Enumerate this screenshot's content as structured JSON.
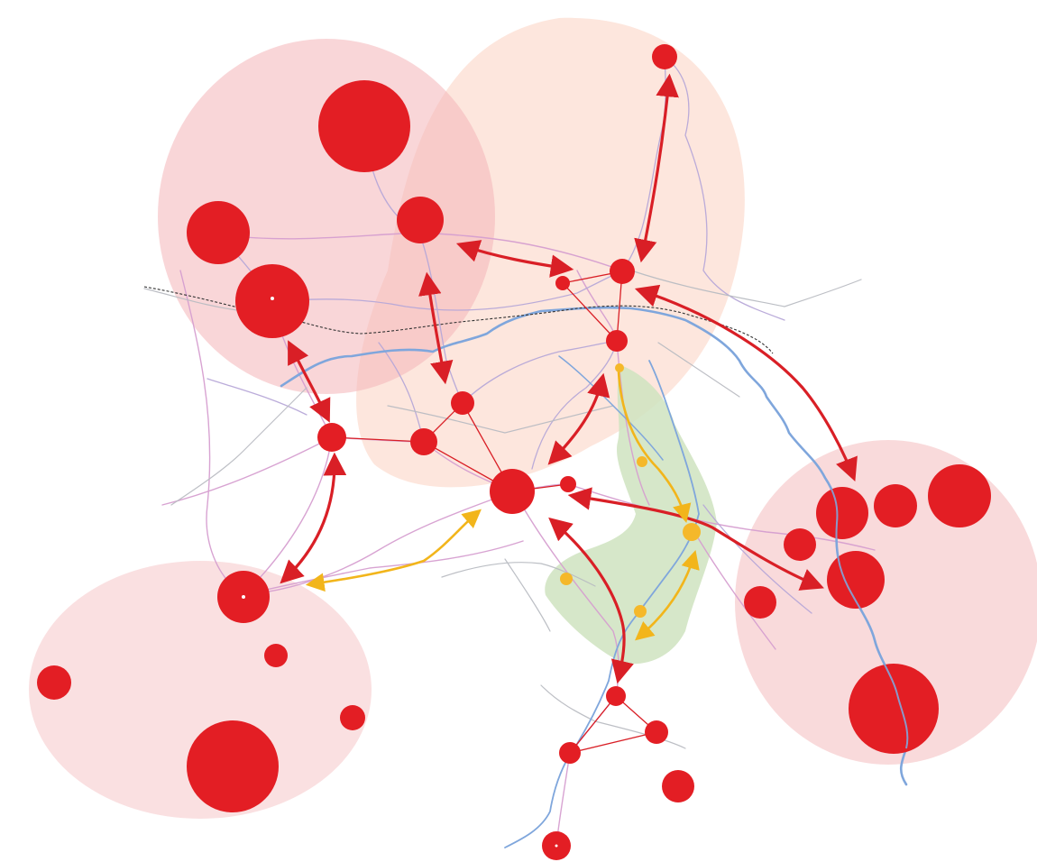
{
  "map": {
    "colors": {
      "background": "#ffffff",
      "node_red": "#e31e24",
      "arrow_red": "#d91f26",
      "arrow_yellow": "#f2b51b",
      "yellow_point": "#f5b82a",
      "zone_pink": "#f4b5b8",
      "zone_peach": "#fbd5c6",
      "green_area": "#cfe3bf",
      "river": "#7fa6dc",
      "road_pink": "#d69fd0",
      "road_purple": "#b7a8d8",
      "road_grey": "#b9bcc2",
      "border": "#333333"
    },
    "layers": [
      "influence-zones",
      "green-area",
      "roads",
      "rivers",
      "border",
      "links",
      "arrows",
      "nodes"
    ]
  }
}
